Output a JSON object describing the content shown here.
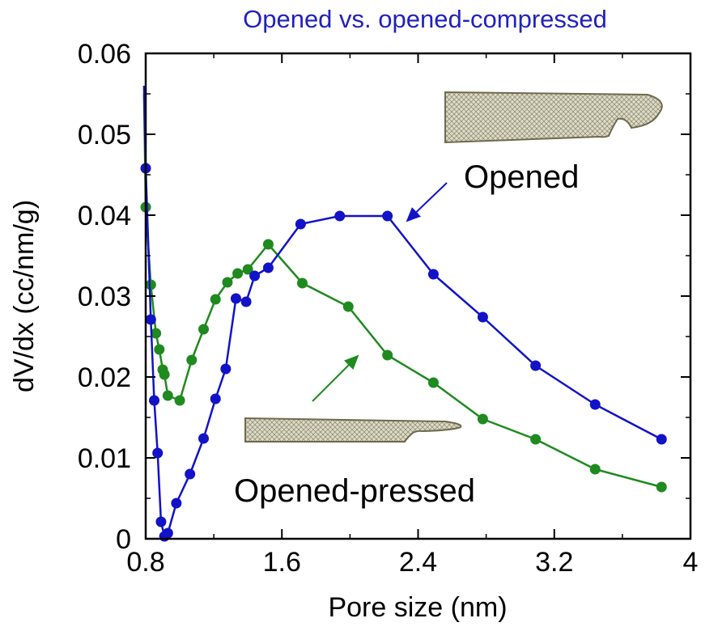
{
  "chart_data": {
    "type": "line",
    "title": "Opened vs. opened-compressed",
    "xlabel": "Pore size (nm)",
    "ylabel": "dV/dx (cc/nm/g)",
    "xlim": [
      0.8,
      4
    ],
    "ylim": [
      0,
      0.06
    ],
    "xticks": [
      0.8,
      1.6,
      2.4,
      3.2,
      4
    ],
    "xtick_labels": [
      "0.8",
      "1.6",
      "2.4",
      "3.2",
      "4"
    ],
    "yticks": [
      0,
      0.01,
      0.02,
      0.03,
      0.04,
      0.05,
      0.06
    ],
    "ytick_labels": [
      "0",
      "0.01",
      "0.02",
      "0.03",
      "0.04",
      "0.05",
      "0.06"
    ],
    "grid": false,
    "legend": "none",
    "series": [
      {
        "color": "#1212c8",
        "x": [
          0.79,
          0.8,
          0.83,
          0.85,
          0.87,
          0.89,
          0.91,
          0.93,
          0.98,
          1.06,
          1.14,
          1.21,
          1.27,
          1.33,
          1.39,
          1.44,
          1.52,
          1.71,
          1.94,
          2.22,
          2.49,
          2.78,
          3.09,
          3.44,
          3.83
        ],
        "y": [
          0.056,
          0.0458,
          0.0271,
          0.0171,
          0.0106,
          0.0021,
          0.0003,
          0.0007,
          0.0044,
          0.008,
          0.0124,
          0.0173,
          0.021,
          0.0297,
          0.0293,
          0.0325,
          0.0335,
          0.0389,
          0.0399,
          0.0399,
          0.0327,
          0.0274,
          0.0214,
          0.0166,
          0.0123
        ]
      },
      {
        "color": "#1f8a1f",
        "x": [
          0.79,
          0.8,
          0.83,
          0.86,
          0.88,
          0.9,
          0.91,
          0.93,
          1.0,
          1.07,
          1.14,
          1.21,
          1.28,
          1.34,
          1.4,
          1.52,
          1.72,
          1.99,
          2.22,
          2.49,
          2.78,
          3.09,
          3.44,
          3.83
        ],
        "y": [
          0.055,
          0.041,
          0.0314,
          0.0254,
          0.0234,
          0.0209,
          0.0203,
          0.0177,
          0.0171,
          0.0221,
          0.0259,
          0.0296,
          0.0317,
          0.0328,
          0.0333,
          0.0364,
          0.0316,
          0.0287,
          0.0227,
          0.0193,
          0.0148,
          0.0123,
          0.0086,
          0.0064
        ]
      }
    ],
    "annotations": [
      {
        "text": "Opened",
        "color": "#1212c8"
      },
      {
        "text": "Opened-pressed",
        "color": "#1f8a1f"
      }
    ],
    "colors": {
      "pattern_fill": "#d8d6c4",
      "pattern_line": "#6f6a4a",
      "title": "#2222bb",
      "axis": "#000000"
    }
  }
}
